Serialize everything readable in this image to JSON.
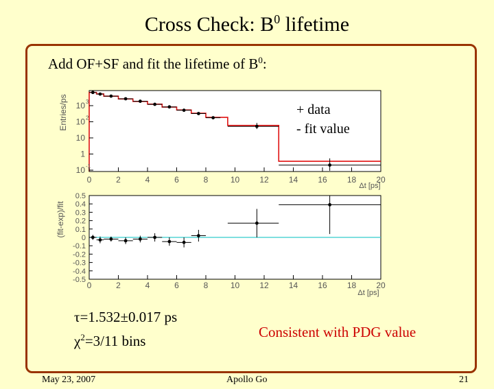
{
  "slide": {
    "title_main": "Cross Check: B",
    "title_sup": "0",
    "title_end": " lifetime",
    "intro_main": "Add OF+SF and fit the lifetime of B",
    "intro_sup": "0",
    "intro_end": ":",
    "legend_data": "+ data",
    "legend_fit": "- fit value",
    "tau_text": "τ=1.532±0.017 ps",
    "chi_main": "χ",
    "chi_sup": "2",
    "chi_end": "=3/11 bins",
    "consistent": "Consistent with PDG value",
    "footer_date": "May 23, 2007",
    "footer_author": "Apollo Go",
    "footer_page": "21"
  },
  "chart_data": [
    {
      "type": "scatter",
      "title": "",
      "xlabel": "Δt [ps]",
      "ylabel": "Entries/ps",
      "log_y": true,
      "xlim": [
        0,
        20
      ],
      "x_ticks": [
        "0",
        "2",
        "4",
        "6",
        "8",
        "10",
        "12",
        "14",
        "16",
        "18",
        "20"
      ],
      "y_ticks": [
        {
          "base": "10",
          "exp": "3"
        },
        {
          "base": "10",
          "exp": "2"
        },
        {
          "base": "10",
          "exp": ""
        },
        {
          "base": "1",
          "exp": ""
        },
        {
          "base": "10",
          "exp": "-1"
        }
      ],
      "colors": {
        "fit": "#e01010",
        "data": "#000000"
      },
      "fit_bins": [
        {
          "x0": 0,
          "x1": 0.5,
          "y": 1600
        },
        {
          "x0": 0.5,
          "x1": 1,
          "y": 1320
        },
        {
          "x0": 1,
          "x1": 2,
          "y": 1000
        },
        {
          "x0": 2,
          "x1": 3,
          "y": 720
        },
        {
          "x0": 3,
          "x1": 4,
          "y": 530
        },
        {
          "x0": 4,
          "x1": 5,
          "y": 380
        },
        {
          "x0": 5,
          "x1": 6,
          "y": 265
        },
        {
          "x0": 6,
          "x1": 7,
          "y": 185
        },
        {
          "x0": 7,
          "x1": 8,
          "y": 125
        },
        {
          "x0": 8,
          "x1": 9.5,
          "y": 75
        },
        {
          "x0": 9.5,
          "x1": 13,
          "y": 28
        },
        {
          "x0": 13,
          "x1": 20,
          "y": 0.35
        }
      ],
      "data_points": [
        {
          "x": 0.25,
          "y": 1580,
          "xlo": 0,
          "xhi": 0.5
        },
        {
          "x": 0.75,
          "y": 1300,
          "xlo": 0.5,
          "xhi": 1
        },
        {
          "x": 1.5,
          "y": 1010,
          "xlo": 1,
          "xhi": 2
        },
        {
          "x": 2.5,
          "y": 730,
          "xlo": 2,
          "xhi": 3
        },
        {
          "x": 3.5,
          "y": 540,
          "xlo": 3,
          "xhi": 4
        },
        {
          "x": 4.5,
          "y": 370,
          "xlo": 4,
          "xhi": 5
        },
        {
          "x": 5.5,
          "y": 270,
          "xlo": 5,
          "xhi": 6
        },
        {
          "x": 6.5,
          "y": 180,
          "xlo": 6,
          "xhi": 7
        },
        {
          "x": 7.5,
          "y": 120,
          "xlo": 7,
          "xhi": 8
        },
        {
          "x": 8.5,
          "y": 72,
          "xlo": 8,
          "xhi": 9
        },
        {
          "x": 11.5,
          "y": 25,
          "xlo": 9.5,
          "xhi": 13,
          "ylo": 18,
          "yhi": 38
        },
        {
          "x": 16.5,
          "y": 0.22,
          "xlo": 13,
          "xhi": 20,
          "ylo": 0.11,
          "yhi": 0.5
        }
      ]
    },
    {
      "type": "scatter",
      "title": "",
      "xlabel": "Δt [ps]",
      "ylabel": "(fit-exp)/fit",
      "xlim": [
        0,
        20
      ],
      "ylim": [
        -0.5,
        0.5
      ],
      "x_ticks": [
        "0",
        "2",
        "4",
        "6",
        "8",
        "10",
        "12",
        "14",
        "16",
        "18",
        "20"
      ],
      "y_ticks": [
        "0.5",
        "0.4",
        "0.3",
        "0.2",
        "0.1",
        "0",
        "-0.1",
        "-0.2",
        "-0.3",
        "-0.4",
        "-0.5"
      ],
      "colors": {
        "zero_line": "#33cccc",
        "data": "#000000"
      },
      "data_points": [
        {
          "x": 0.25,
          "y": 0.0,
          "xlo": 0,
          "xhi": 0.5,
          "ylo": -0.03,
          "yhi": 0.03
        },
        {
          "x": 0.75,
          "y": -0.03,
          "xlo": 0.5,
          "xhi": 1,
          "ylo": -0.07,
          "yhi": 0.01
        },
        {
          "x": 1.5,
          "y": -0.02,
          "xlo": 1,
          "xhi": 2,
          "ylo": -0.05,
          "yhi": 0.01
        },
        {
          "x": 2.5,
          "y": -0.04,
          "xlo": 2,
          "xhi": 3,
          "ylo": -0.08,
          "yhi": 0.0
        },
        {
          "x": 3.5,
          "y": -0.02,
          "xlo": 3,
          "xhi": 4,
          "ylo": -0.06,
          "yhi": 0.02
        },
        {
          "x": 4.5,
          "y": 0.0,
          "xlo": 4,
          "xhi": 5,
          "ylo": -0.05,
          "yhi": 0.05
        },
        {
          "x": 5.5,
          "y": -0.05,
          "xlo": 5,
          "xhi": 6,
          "ylo": -0.1,
          "yhi": 0.0
        },
        {
          "x": 6.5,
          "y": -0.06,
          "xlo": 6,
          "xhi": 7,
          "ylo": -0.12,
          "yhi": 0.0
        },
        {
          "x": 7.5,
          "y": 0.02,
          "xlo": 7,
          "xhi": 8,
          "ylo": -0.05,
          "yhi": 0.09
        },
        {
          "x": 11.5,
          "y": 0.17,
          "xlo": 9.5,
          "xhi": 13,
          "ylo": 0.0,
          "yhi": 0.34
        },
        {
          "x": 16.5,
          "y": 0.39,
          "xlo": 13,
          "xhi": 20,
          "ylo": 0.04,
          "yhi": 0.5
        }
      ]
    }
  ]
}
